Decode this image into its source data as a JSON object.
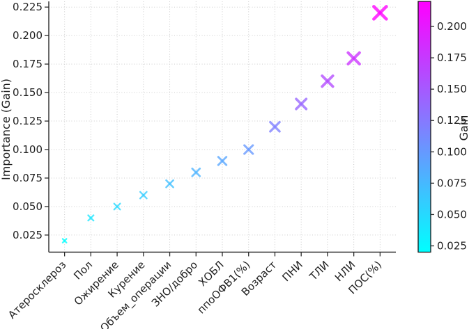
{
  "figure": {
    "title": "",
    "description": "Feature importance scatter plot with colorbar"
  },
  "chart_data": {
    "type": "scatter",
    "title": "",
    "xlabel": "",
    "ylabel": "Importance (Gain)",
    "marker": "x",
    "grid": true,
    "categories": [
      "Атеросклероз",
      "Пол",
      "Ожирение",
      "Курение",
      "Объем_операции",
      "ЗНО/добро",
      "ХОБЛ",
      "ппоОФВ1(%)",
      "Возраст",
      "ПНИ",
      "ТЛИ",
      "НЛИ",
      "ПОС(%)"
    ],
    "values": [
      0.02,
      0.04,
      0.05,
      0.06,
      0.07,
      0.08,
      0.09,
      0.1,
      0.12,
      0.14,
      0.16,
      0.18,
      0.22
    ],
    "yticks": [
      0.025,
      0.05,
      0.075,
      0.1,
      0.125,
      0.15,
      0.175,
      0.2,
      0.225
    ],
    "ylim": [
      0.01,
      0.23
    ],
    "xtick_rotation": 45,
    "colormap": "cool",
    "colorbar": {
      "label": "Gain",
      "ticks": [
        0.025,
        0.05,
        0.075,
        0.1,
        0.125,
        0.15,
        0.175,
        0.2
      ],
      "range": [
        0.02,
        0.22
      ],
      "position": "right"
    }
  },
  "colors": {
    "background": "#ffffff",
    "grid": "#cccccc",
    "spine": "#2b2b2b",
    "tick": "#2b2b2b",
    "text": "#1f1f1f",
    "cmap_low": "#00ffff",
    "cmap_high": "#ff00ff",
    "marker_alpha": 0.78
  }
}
